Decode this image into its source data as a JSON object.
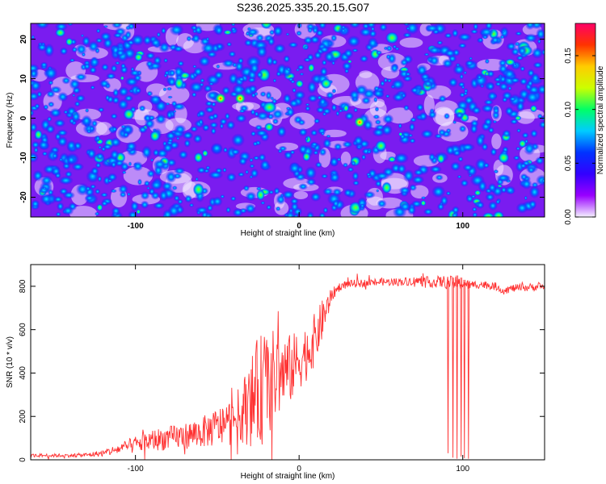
{
  "title": "S236.2025.335.20.15.G07",
  "chart_data": [
    {
      "type": "heatmap",
      "xlabel": "Height of straight line (km)",
      "ylabel": "Frequency (Hz)",
      "xlim": [
        -164,
        150
      ],
      "ylim": [
        -25,
        24
      ],
      "xticks": [
        -100,
        0,
        100
      ],
      "yticks": [
        -20,
        -10,
        0,
        10,
        20
      ],
      "colorbar": {
        "label": "Normalized spectral amplitude",
        "range": [
          0,
          0.18
        ],
        "ticks": [
          0.0,
          0.05,
          0.1,
          0.15
        ],
        "colors": [
          "#f4f0ff",
          "#9900ff",
          "#3300ff",
          "#0033ff",
          "#00ccff",
          "#00ff66",
          "#ccff00",
          "#ffcc00",
          "#ff3300",
          "#ff0066"
        ]
      },
      "hotspots": [
        {
          "x": -48,
          "y": 5,
          "value": 0.12
        },
        {
          "x": -36,
          "y": 5,
          "value": 0.13
        },
        {
          "x": 37,
          "y": -1,
          "value": 0.11
        },
        {
          "x": 50,
          "y": -7,
          "value": 0.1
        },
        {
          "x": 125,
          "y": -10,
          "value": 0.09
        },
        {
          "x": -104,
          "y": 1,
          "value": 0.09
        },
        {
          "x": -20,
          "y": 24,
          "value": 0.09
        }
      ]
    },
    {
      "type": "line",
      "xlabel": "Height of straight line (km)",
      "ylabel": "SNR (10 * v/v)",
      "xlim": [
        -164,
        150
      ],
      "ylim": [
        0,
        900
      ],
      "xticks": [
        -100,
        0,
        100
      ],
      "yticks": [
        0,
        200,
        400,
        600,
        800
      ],
      "color": "#ff3333",
      "series": [
        {
          "name": "SNR",
          "x": [
            -164,
            -140,
            -130,
            -120,
            -110,
            -100,
            -90,
            -80,
            -70,
            -60,
            -50,
            -40,
            -35,
            -30,
            -25,
            -20,
            -15,
            -10,
            -5,
            0,
            5,
            10,
            15,
            20,
            25,
            30,
            40,
            50,
            60,
            70,
            80,
            90,
            95,
            100,
            105,
            110,
            115,
            120,
            125,
            130,
            140,
            150
          ],
          "y": [
            20,
            20,
            22,
            30,
            50,
            70,
            90,
            100,
            110,
            125,
            150,
            180,
            220,
            260,
            310,
            350,
            380,
            400,
            420,
            460,
            500,
            560,
            660,
            760,
            800,
            810,
            815,
            820,
            820,
            825,
            820,
            820,
            815,
            810,
            805,
            810,
            805,
            800,
            780,
            790,
            795,
            800
          ],
          "spread": [
            8,
            8,
            10,
            15,
            25,
            40,
            50,
            55,
            60,
            70,
            90,
            110,
            140,
            200,
            260,
            260,
            220,
            180,
            160,
            140,
            130,
            120,
            90,
            30,
            20,
            18,
            18,
            18,
            18,
            20,
            25,
            30,
            30,
            25,
            20,
            20,
            18,
            18,
            18,
            18,
            18,
            18
          ]
        }
      ],
      "dropouts": [
        {
          "x": 91,
          "from": 820,
          "to": 30
        },
        {
          "x": 94,
          "from": 840,
          "to": 10
        },
        {
          "x": 96.5,
          "from": 850,
          "to": 5
        },
        {
          "x": 99,
          "from": 840,
          "to": 15
        },
        {
          "x": 101,
          "from": 830,
          "to": 8
        },
        {
          "x": 103.5,
          "from": 820,
          "to": 5
        }
      ]
    }
  ]
}
